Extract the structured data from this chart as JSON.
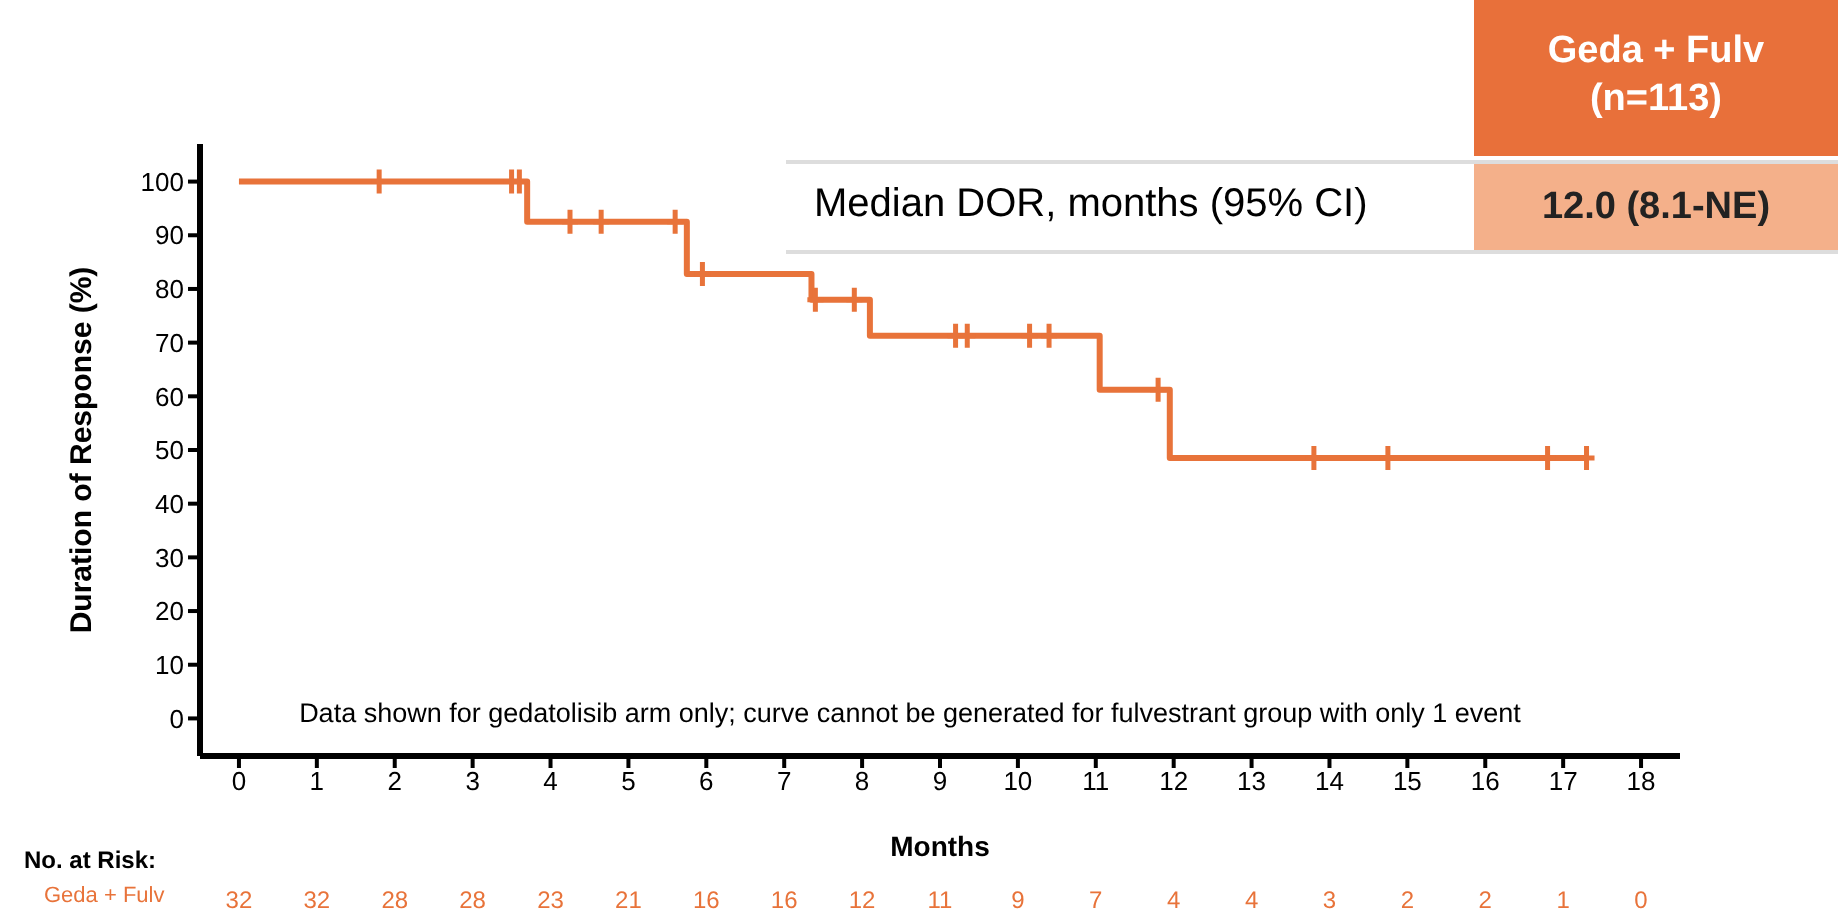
{
  "chart_data": {
    "type": "step",
    "xlabel": "Months",
    "ylabel": "Duration of Response (%)",
    "xlim": [
      -0.5,
      18.5
    ],
    "xticks": [
      0,
      1,
      2,
      3,
      4,
      5,
      6,
      7,
      8,
      9,
      10,
      11,
      12,
      13,
      14,
      15,
      16,
      17,
      18
    ],
    "ylim": [
      -7,
      107
    ],
    "yticks": [
      0,
      10,
      20,
      30,
      40,
      50,
      60,
      70,
      80,
      90,
      100
    ],
    "series": [
      {
        "color": "#e8733a",
        "x": [
          0,
          3.7,
          5.75,
          7.35,
          8.1,
          11.05,
          11.95,
          17.3
        ],
        "values": [
          100,
          92.5,
          82.8,
          78,
          71.3,
          61.2,
          48.5,
          48.5
        ]
      },
      {
        "type": "scatter",
        "marker": "cross",
        "color": "#e8733a",
        "x": [
          1.8,
          3.5,
          3.6,
          4.25,
          4.65,
          5.6,
          5.95,
          7.4,
          7.9,
          9.2,
          9.35,
          10.15,
          10.4,
          11.8,
          13.8,
          14.75,
          16.8,
          17.3
        ],
        "values": [
          100,
          100,
          100,
          92.5,
          92.5,
          92.5,
          82.8,
          78,
          78,
          71.3,
          71.3,
          71.3,
          71.3,
          61.2,
          48.5,
          48.5,
          48.5,
          48.5
        ]
      }
    ],
    "annotations": [
      "Geda +  Fulv",
      "(n=113)",
      "Median DOR, months (95% CI)",
      "12.0 (8.1-NE)",
      "Data shown for gedatolisib arm only; curve cannot be generated for fulvestrant group with only 1 event",
      "No. at Risk:",
      "Geda + Fulv",
      "32",
      "32",
      "28",
      "28",
      "23",
      "21",
      "16",
      "16",
      "12",
      "11",
      "9",
      "7",
      "4",
      "4",
      "3",
      "2",
      "2",
      "1",
      "0"
    ]
  }
}
